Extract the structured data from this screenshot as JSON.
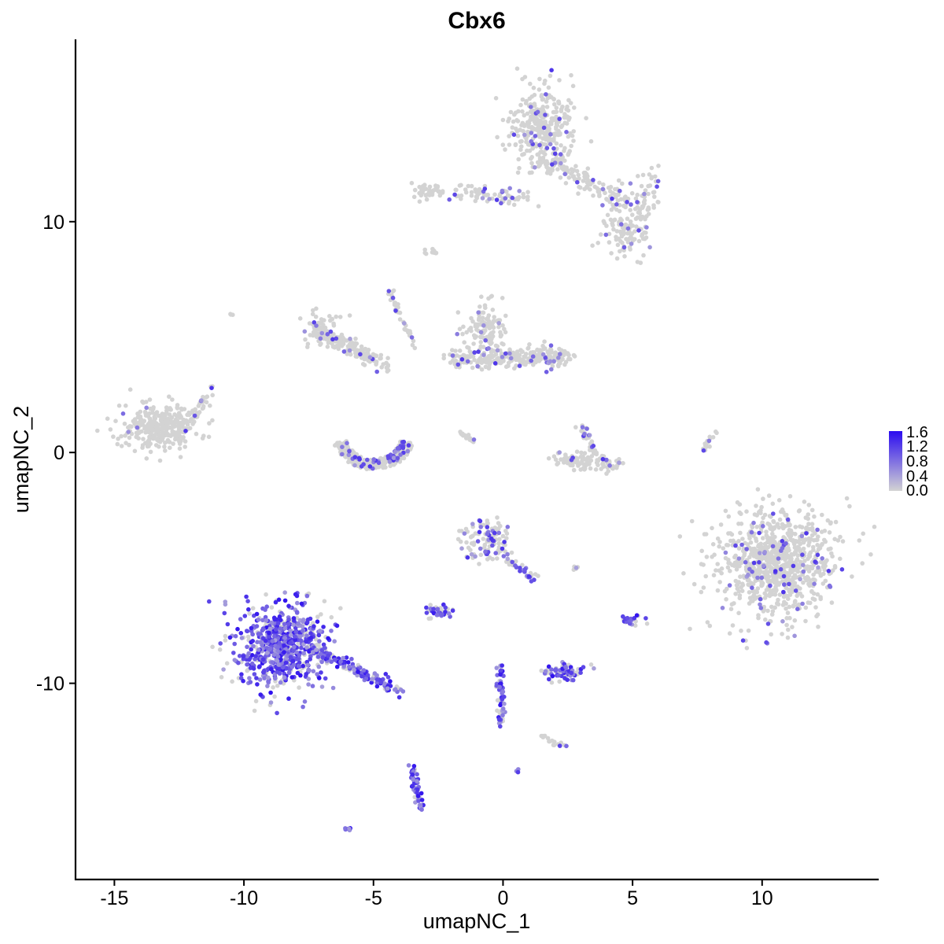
{
  "chart_data": {
    "type": "scatter",
    "title": "Cbx6",
    "xlabel": "umapNC_1",
    "ylabel": "umapNC_2",
    "xlim": [
      -16.5,
      14.5
    ],
    "ylim": [
      -18.5,
      17.9
    ],
    "x_ticks": [
      -15,
      -10,
      -5,
      0,
      5,
      10
    ],
    "x_tick_labels": [
      "-15",
      "-10",
      "-5",
      "0",
      "5",
      "10"
    ],
    "y_ticks": [
      -10,
      0,
      10
    ],
    "y_tick_labels": [
      "-10",
      "0",
      "10"
    ],
    "grid": false,
    "legend_position": "right",
    "color_scale": {
      "low_color": "#d3d3d3",
      "high_color": "#2b0cf0",
      "min": 0.0,
      "max": 1.6,
      "breaks": [
        0.0,
        0.4,
        0.8,
        1.2,
        1.6
      ],
      "labels": [
        "0.0",
        "0.4",
        "0.8",
        "1.2",
        "1.6"
      ]
    },
    "clusters": [
      {
        "cx": 1.6,
        "cy": 14.1,
        "sx": 0.65,
        "sy": 0.85,
        "n": 320,
        "expr": 0.04,
        "shape": "blob"
      },
      {
        "x0": 1.4,
        "y0": 12.8,
        "x1": 5.6,
        "y1": 10.3,
        "w": 0.45,
        "n": 160,
        "expr": 0.05,
        "shape": "line"
      },
      {
        "x0": -3.5,
        "y0": 11.4,
        "x1": 1.0,
        "y1": 11.0,
        "w": 0.35,
        "n": 110,
        "expr": 0.05,
        "shape": "line"
      },
      {
        "cx": 4.8,
        "cy": 9.4,
        "sx": 0.55,
        "sy": 0.45,
        "n": 90,
        "expr": 0.12,
        "shape": "blob"
      },
      {
        "cx": 5.6,
        "cy": 11.2,
        "sx": 0.35,
        "sy": 0.55,
        "n": 40,
        "expr": 0.08,
        "shape": "blob"
      },
      {
        "cx": -7.0,
        "cy": 5.3,
        "sx": 0.35,
        "sy": 0.45,
        "n": 70,
        "expr": 0.03,
        "shape": "blob"
      },
      {
        "x0": -7.0,
        "y0": 5.2,
        "x1": -4.5,
        "y1": 3.8,
        "w": 0.35,
        "n": 140,
        "expr": 0.04,
        "shape": "line"
      },
      {
        "x0": -4.5,
        "y0": 7.2,
        "x1": -3.4,
        "y1": 4.6,
        "w": 0.1,
        "n": 40,
        "expr": 0.05,
        "shape": "line"
      },
      {
        "cx": -0.7,
        "cy": 5.3,
        "sx": 0.4,
        "sy": 0.55,
        "n": 120,
        "expr": 0.06,
        "shape": "blob"
      },
      {
        "x0": -2.0,
        "y0": 4.0,
        "x1": 2.5,
        "y1": 4.2,
        "w": 0.45,
        "n": 260,
        "expr": 0.05,
        "shape": "line"
      },
      {
        "cx": -13.3,
        "cy": 1.1,
        "sx": 0.75,
        "sy": 0.5,
        "n": 300,
        "expr": 0.01,
        "shape": "blob"
      },
      {
        "x0": -12.6,
        "y0": 0.5,
        "x1": -11.2,
        "y1": 2.8,
        "w": 0.25,
        "n": 50,
        "expr": 0.0,
        "shape": "line"
      },
      {
        "cx": -5.0,
        "cy": 0.1,
        "ring": true,
        "r": 1.4,
        "n": 240,
        "expr": 0.18,
        "shape": "ring"
      },
      {
        "x0": -1.7,
        "y0": 0.9,
        "x1": -1.1,
        "y1": 0.5,
        "w": 0.1,
        "n": 20,
        "expr": 0.0,
        "shape": "line"
      },
      {
        "x0": 2.0,
        "y0": -0.3,
        "x1": 4.5,
        "y1": -0.5,
        "w": 0.35,
        "n": 120,
        "expr": 0.04,
        "shape": "line"
      },
      {
        "x0": 3.0,
        "y0": 1.2,
        "x1": 3.6,
        "y1": -0.1,
        "w": 0.2,
        "n": 35,
        "expr": 0.15,
        "shape": "line"
      },
      {
        "x0": 7.7,
        "y0": 0.1,
        "x1": 8.2,
        "y1": 0.9,
        "w": 0.1,
        "n": 18,
        "expr": 0.0,
        "shape": "line"
      },
      {
        "cx": 10.6,
        "cy": -4.8,
        "sx": 1.1,
        "sy": 1.1,
        "n": 900,
        "expr": 0.06,
        "shape": "blob"
      },
      {
        "cx": -0.6,
        "cy": -3.7,
        "sx": 0.45,
        "sy": 0.45,
        "n": 110,
        "expr": 0.3,
        "shape": "blob"
      },
      {
        "x0": -0.3,
        "y0": -4.2,
        "x1": 1.2,
        "y1": -5.5,
        "w": 0.2,
        "n": 40,
        "expr": 0.4,
        "shape": "line"
      },
      {
        "cx": -8.6,
        "cy": -8.4,
        "sx": 0.85,
        "sy": 0.9,
        "n": 700,
        "expr": 0.72,
        "shape": "blob"
      },
      {
        "x0": -7.2,
        "y0": -8.6,
        "x1": -4.0,
        "y1": -10.3,
        "w": 0.25,
        "n": 160,
        "expr": 0.68,
        "shape": "line"
      },
      {
        "cx": -2.5,
        "cy": -6.9,
        "sx": 0.3,
        "sy": 0.12,
        "n": 40,
        "expr": 0.55,
        "shape": "blob"
      },
      {
        "x0": -0.1,
        "y0": -9.2,
        "x1": -0.1,
        "y1": -11.9,
        "w": 0.15,
        "n": 55,
        "expr": 0.7,
        "shape": "line"
      },
      {
        "cx": 2.4,
        "cy": -9.5,
        "sx": 0.4,
        "sy": 0.2,
        "n": 80,
        "expr": 0.65,
        "shape": "blob"
      },
      {
        "x0": 1.5,
        "y0": -12.3,
        "x1": 2.5,
        "y1": -12.8,
        "w": 0.1,
        "n": 18,
        "expr": 0.4,
        "shape": "line"
      },
      {
        "x0": -3.5,
        "y0": -13.6,
        "x1": -3.2,
        "y1": -15.4,
        "w": 0.15,
        "n": 60,
        "expr": 0.85,
        "shape": "line"
      },
      {
        "cx": 5.0,
        "cy": -7.3,
        "sx": 0.2,
        "sy": 0.15,
        "n": 20,
        "expr": 0.7,
        "shape": "blob"
      },
      {
        "cx": -6.0,
        "cy": -16.3,
        "sx": 0.1,
        "sy": 0.05,
        "n": 8,
        "expr": 0.9,
        "shape": "blob"
      },
      {
        "cx": -2.8,
        "cy": 8.7,
        "sx": 0.2,
        "sy": 0.08,
        "n": 10,
        "expr": 0.0,
        "shape": "blob"
      },
      {
        "cx": -10.5,
        "cy": 6.0,
        "sx": 0.05,
        "sy": 0.05,
        "n": 3,
        "expr": 0.0,
        "shape": "blob"
      },
      {
        "cx": 0.6,
        "cy": -13.8,
        "sx": 0.05,
        "sy": 0.05,
        "n": 3,
        "expr": 1.0,
        "shape": "blob"
      },
      {
        "cx": 2.8,
        "cy": -5.0,
        "sx": 0.1,
        "sy": 0.05,
        "n": 5,
        "expr": 0.1,
        "shape": "blob"
      }
    ]
  }
}
